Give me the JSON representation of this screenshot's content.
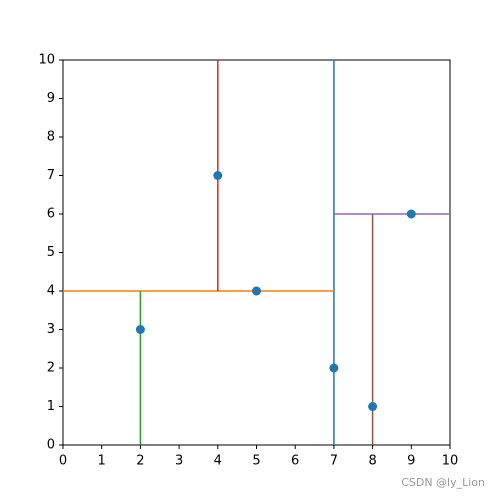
{
  "chart_data": {
    "type": "scatter",
    "xlim": [
      0,
      10
    ],
    "ylim": [
      0,
      10
    ],
    "xticks": [
      0,
      1,
      2,
      3,
      4,
      5,
      6,
      7,
      8,
      9,
      10
    ],
    "yticks": [
      0,
      1,
      2,
      3,
      4,
      5,
      6,
      7,
      8,
      9,
      10
    ],
    "grid": false,
    "lines": [
      {
        "color": "#1f77b4",
        "x": [
          7,
          7
        ],
        "values": [
          0,
          10
        ]
      },
      {
        "color": "#ff7f0e",
        "x": [
          0,
          7
        ],
        "values": [
          4,
          4
        ]
      },
      {
        "color": "#2ca02c",
        "x": [
          2,
          2
        ],
        "values": [
          0,
          4
        ]
      },
      {
        "color": "#d62728",
        "x": [
          4,
          4
        ],
        "values": [
          4,
          10
        ]
      },
      {
        "color": "#9467bd",
        "x": [
          7,
          10
        ],
        "values": [
          6,
          6
        ]
      },
      {
        "color": "#8c564b",
        "x": [
          8,
          8
        ],
        "values": [
          0,
          6
        ]
      }
    ],
    "points": {
      "color": "#1f77b4",
      "x": [
        2,
        5,
        9,
        4,
        8,
        7
      ],
      "values": [
        3,
        4,
        6,
        7,
        1,
        2
      ]
    },
    "watermark": "CSDN @ly_Lion"
  }
}
